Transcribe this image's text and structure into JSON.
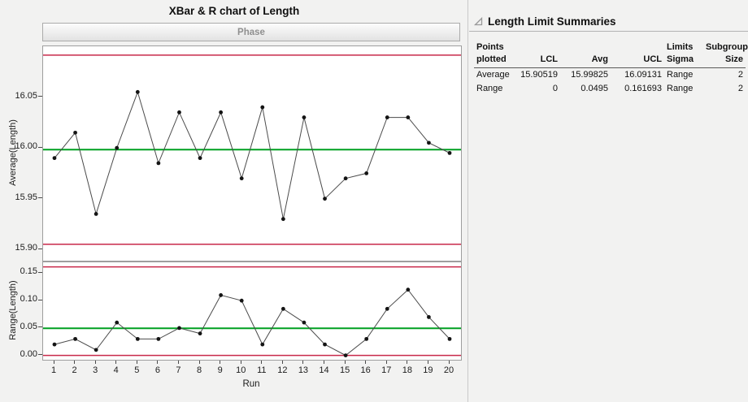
{
  "title": "XBar & R chart of Length",
  "phase_label": "Phase",
  "panel": {
    "title": "Length Limit Summaries",
    "table": {
      "headers": [
        [
          "Points",
          "plotted"
        ],
        [
          "",
          "LCL"
        ],
        [
          "",
          "Avg"
        ],
        [
          "",
          "UCL"
        ],
        [
          "Limits",
          "Sigma"
        ],
        [
          "Subgroup",
          "Size"
        ]
      ],
      "rows": [
        [
          "Average",
          "15.90519",
          "15.99825",
          "16.09131",
          "Range",
          "2"
        ],
        [
          "Range",
          "0",
          "0.0495",
          "0.161693",
          "Range",
          "2"
        ]
      ]
    }
  },
  "colors": {
    "limit": "#c8294a",
    "center": "#00a021",
    "line": "#4b4b4b",
    "point": "#141414"
  },
  "chart_data": [
    {
      "type": "line",
      "name": "xbar-chart",
      "ylabel": "Average(Length)",
      "xlabel": "",
      "x": [
        1,
        2,
        3,
        4,
        5,
        6,
        7,
        8,
        9,
        10,
        11,
        12,
        13,
        14,
        15,
        16,
        17,
        18,
        19,
        20
      ],
      "values": [
        15.99,
        16.015,
        15.935,
        16.0,
        16.055,
        15.985,
        16.035,
        15.99,
        16.035,
        15.97,
        16.04,
        15.93,
        16.03,
        15.95,
        15.97,
        15.975,
        16.03,
        16.03,
        16.005,
        15.995
      ],
      "center": 15.99825,
      "lcl": 15.90519,
      "ucl": 16.09131,
      "ylim": [
        15.889,
        16.1
      ],
      "yticks": [
        15.9,
        15.95,
        16.0,
        16.05
      ],
      "yticklabels": [
        "15.90",
        "15.95",
        "16.00",
        "16.05"
      ]
    },
    {
      "type": "line",
      "name": "r-chart",
      "ylabel": "Range(Length)",
      "xlabel": "Run",
      "x": [
        1,
        2,
        3,
        4,
        5,
        6,
        7,
        8,
        9,
        10,
        11,
        12,
        13,
        14,
        15,
        16,
        17,
        18,
        19,
        20
      ],
      "values": [
        0.02,
        0.03,
        0.01,
        0.06,
        0.03,
        0.03,
        0.05,
        0.04,
        0.11,
        0.1,
        0.02,
        0.085,
        0.06,
        0.02,
        0.0,
        0.03,
        0.085,
        0.12,
        0.07,
        0.03
      ],
      "center": 0.0495,
      "lcl": 0,
      "ucl": 0.161693,
      "ylim": [
        -0.008,
        0.17
      ],
      "yticks": [
        0.0,
        0.05,
        0.1,
        0.15
      ],
      "yticklabels": [
        "0.00",
        "0.05",
        "0.10",
        "0.15"
      ]
    }
  ]
}
